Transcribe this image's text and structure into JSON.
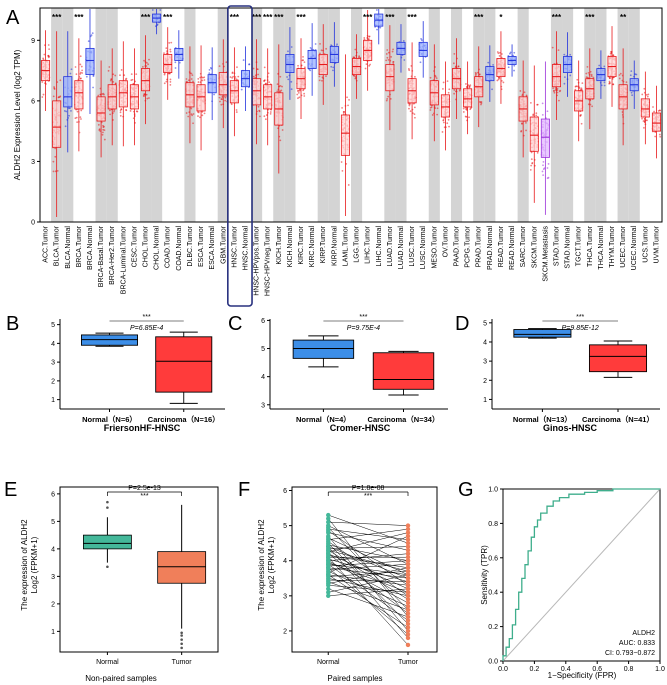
{
  "panel_letters": [
    "A",
    "B",
    "C",
    "D",
    "E",
    "F",
    "G"
  ],
  "colors": {
    "tumor": "#e8191b",
    "normal": "#2233dd",
    "metastasis": "#9b30d9",
    "shade": "#d4d4d4",
    "box_normal": "#3c8ee8",
    "box_tumor": "#ff3b3b",
    "teal": "#44b89a",
    "salmon": "#f07f5a",
    "roc": "#3fae8c",
    "highlight": "#28317f"
  },
  "chart_data": [
    {
      "id": "A",
      "type": "box",
      "ylabel": "ALDH2 Expression Level (log2 TPM)",
      "ylim": [
        0,
        10.6
      ],
      "yticks": [
        0,
        3,
        6,
        9
      ],
      "highlight_range": [
        "HNSC.Tumor",
        "HNSC.Normal"
      ],
      "categories": [
        {
          "label": "ACC.Tumor",
          "g": "t",
          "sh": 0,
          "med": 7.5,
          "q1": 7.0,
          "q3": 8.0,
          "sig": ""
        },
        {
          "label": "BLCA.Tumor",
          "g": "t",
          "sh": 1,
          "med": 4.7,
          "q1": 3.7,
          "q3": 6.0,
          "sig": "***"
        },
        {
          "label": "BLCA.Normal",
          "g": "n",
          "sh": 1,
          "med": 6.2,
          "q1": 5.7,
          "q3": 7.2,
          "sig": ""
        },
        {
          "label": "BRCA.Tumor",
          "g": "t",
          "sh": 0,
          "med": 6.4,
          "q1": 5.6,
          "q3": 7.0,
          "sig": "***"
        },
        {
          "label": "BRCA.Normal",
          "g": "n",
          "sh": 0,
          "med": 8.0,
          "q1": 7.3,
          "q3": 8.6,
          "sig": ""
        },
        {
          "label": "BRCA-Basal.Tumor",
          "g": "t",
          "sh": 1,
          "med": 5.4,
          "q1": 5.0,
          "q3": 6.2,
          "sig": ""
        },
        {
          "label": "BRCA-Her2.Tumor",
          "g": "t",
          "sh": 1,
          "med": 6.2,
          "q1": 5.6,
          "q3": 6.8,
          "sig": ""
        },
        {
          "label": "BRCA-Luminal.Tumor",
          "g": "t",
          "sh": 0,
          "med": 6.4,
          "q1": 5.7,
          "q3": 7.0,
          "sig": ""
        },
        {
          "label": "CESC.Tumor",
          "g": "t",
          "sh": 0,
          "med": 6.2,
          "q1": 5.6,
          "q3": 6.8,
          "sig": ""
        },
        {
          "label": "CHOL.Tumor",
          "g": "t",
          "sh": 1,
          "med": 7.0,
          "q1": 6.5,
          "q3": 7.6,
          "sig": "***"
        },
        {
          "label": "CHOL.Normal",
          "g": "n",
          "sh": 1,
          "med": 10.1,
          "q1": 9.9,
          "q3": 10.3,
          "sig": ""
        },
        {
          "label": "COAD.Tumor",
          "g": "t",
          "sh": 0,
          "med": 7.8,
          "q1": 7.4,
          "q3": 8.3,
          "sig": "***"
        },
        {
          "label": "COAD.Normal",
          "g": "n",
          "sh": 0,
          "med": 8.3,
          "q1": 8.0,
          "q3": 8.6,
          "sig": ""
        },
        {
          "label": "DLBC.Tumor",
          "g": "t",
          "sh": 1,
          "med": 6.3,
          "q1": 5.7,
          "q3": 6.9,
          "sig": ""
        },
        {
          "label": "ESCA.Tumor",
          "g": "t",
          "sh": 0,
          "med": 6.2,
          "q1": 5.5,
          "q3": 6.8,
          "sig": ""
        },
        {
          "label": "ESCA.Normal",
          "g": "n",
          "sh": 0,
          "med": 6.9,
          "q1": 6.4,
          "q3": 7.3,
          "sig": ""
        },
        {
          "label": "GBM.Tumor",
          "g": "t",
          "sh": 1,
          "med": 6.8,
          "q1": 6.3,
          "q3": 7.4,
          "sig": ""
        },
        {
          "label": "HNSC.Tumor",
          "g": "t",
          "sh": 0,
          "med": 6.5,
          "q1": 5.9,
          "q3": 7.0,
          "sig": "***"
        },
        {
          "label": "HNSC.Normal",
          "g": "n",
          "sh": 0,
          "med": 7.1,
          "q1": 6.7,
          "q3": 7.5,
          "sig": ""
        },
        {
          "label": "HNSC-HPVpos.Tumor",
          "g": "t",
          "sh": 1,
          "med": 6.5,
          "q1": 5.8,
          "q3": 7.1,
          "sig": "***"
        },
        {
          "label": "HNSC-HPVneg.Tumor",
          "g": "t",
          "sh": 0,
          "med": 6.2,
          "q1": 5.6,
          "q3": 6.8,
          "sig": "***"
        },
        {
          "label": "KICH.Tumor",
          "g": "t",
          "sh": 1,
          "med": 5.6,
          "q1": 4.8,
          "q3": 6.4,
          "sig": "***"
        },
        {
          "label": "KICH.Normal",
          "g": "n",
          "sh": 1,
          "med": 7.8,
          "q1": 7.4,
          "q3": 8.3,
          "sig": ""
        },
        {
          "label": "KIRC.Tumor",
          "g": "t",
          "sh": 0,
          "med": 7.1,
          "q1": 6.6,
          "q3": 7.6,
          "sig": "***"
        },
        {
          "label": "KIRC.Normal",
          "g": "n",
          "sh": 0,
          "med": 8.1,
          "q1": 7.6,
          "q3": 8.5,
          "sig": ""
        },
        {
          "label": "KIRP.Tumor",
          "g": "t",
          "sh": 1,
          "med": 7.8,
          "q1": 7.3,
          "q3": 8.3,
          "sig": ""
        },
        {
          "label": "KIRP.Normal",
          "g": "n",
          "sh": 1,
          "med": 8.3,
          "q1": 7.9,
          "q3": 8.7,
          "sig": ""
        },
        {
          "label": "LAML.Tumor",
          "g": "t",
          "sh": 0,
          "med": 4.4,
          "q1": 3.3,
          "q3": 5.3,
          "sig": ""
        },
        {
          "label": "LGG.Tumor",
          "g": "t",
          "sh": 1,
          "med": 7.7,
          "q1": 7.3,
          "q3": 8.1,
          "sig": ""
        },
        {
          "label": "LIHC.Tumor",
          "g": "t",
          "sh": 0,
          "med": 8.5,
          "q1": 8.0,
          "q3": 9.0,
          "sig": "***"
        },
        {
          "label": "LIHC.Normal",
          "g": "n",
          "sh": 0,
          "med": 10.0,
          "q1": 9.7,
          "q3": 10.3,
          "sig": ""
        },
        {
          "label": "LUAD.Tumor",
          "g": "t",
          "sh": 1,
          "med": 7.2,
          "q1": 6.5,
          "q3": 7.8,
          "sig": "***"
        },
        {
          "label": "LUAD.Normal",
          "g": "n",
          "sh": 1,
          "med": 8.6,
          "q1": 8.3,
          "q3": 8.9,
          "sig": ""
        },
        {
          "label": "LUSC.Tumor",
          "g": "t",
          "sh": 0,
          "med": 6.5,
          "q1": 5.9,
          "q3": 7.1,
          "sig": "***"
        },
        {
          "label": "LUSC.Normal",
          "g": "n",
          "sh": 0,
          "med": 8.5,
          "q1": 8.2,
          "q3": 8.9,
          "sig": ""
        },
        {
          "label": "MESO.Tumor",
          "g": "t",
          "sh": 1,
          "med": 6.4,
          "q1": 5.8,
          "q3": 7.0,
          "sig": ""
        },
        {
          "label": "OV.Tumor",
          "g": "t",
          "sh": 0,
          "med": 5.7,
          "q1": 5.2,
          "q3": 6.3,
          "sig": ""
        },
        {
          "label": "PAAD.Tumor",
          "g": "t",
          "sh": 1,
          "med": 7.1,
          "q1": 6.6,
          "q3": 7.6,
          "sig": ""
        },
        {
          "label": "PCPG.Tumor",
          "g": "t",
          "sh": 0,
          "med": 6.1,
          "q1": 5.7,
          "q3": 6.6,
          "sig": ""
        },
        {
          "label": "PRAD.Tumor",
          "g": "t",
          "sh": 1,
          "med": 6.7,
          "q1": 6.2,
          "q3": 7.2,
          "sig": "***"
        },
        {
          "label": "PRAD.Normal",
          "g": "n",
          "sh": 1,
          "med": 7.3,
          "q1": 7.0,
          "q3": 7.7,
          "sig": ""
        },
        {
          "label": "READ.Tumor",
          "g": "t",
          "sh": 0,
          "med": 7.6,
          "q1": 7.2,
          "q3": 8.1,
          "sig": "*"
        },
        {
          "label": "READ.Normal",
          "g": "n",
          "sh": 0,
          "med": 8.0,
          "q1": 7.8,
          "q3": 8.2,
          "sig": ""
        },
        {
          "label": "SARC.Tumor",
          "g": "t",
          "sh": 1,
          "med": 5.6,
          "q1": 5.0,
          "q3": 6.2,
          "sig": ""
        },
        {
          "label": "SKCM.Tumor",
          "g": "t",
          "sh": 0,
          "med": 4.3,
          "q1": 3.5,
          "q3": 5.2,
          "sig": ""
        },
        {
          "label": "SKCM.Metastasis",
          "g": "m",
          "sh": 0,
          "med": 4.2,
          "q1": 3.2,
          "q3": 5.1,
          "sig": ""
        },
        {
          "label": "STAD.Tumor",
          "g": "t",
          "sh": 1,
          "med": 7.2,
          "q1": 6.7,
          "q3": 7.8,
          "sig": "***"
        },
        {
          "label": "STAD.Normal",
          "g": "n",
          "sh": 1,
          "med": 7.8,
          "q1": 7.4,
          "q3": 8.2,
          "sig": ""
        },
        {
          "label": "TGCT.Tumor",
          "g": "t",
          "sh": 0,
          "med": 6.0,
          "q1": 5.5,
          "q3": 6.5,
          "sig": ""
        },
        {
          "label": "THCA.Tumor",
          "g": "t",
          "sh": 1,
          "med": 6.6,
          "q1": 6.1,
          "q3": 7.1,
          "sig": "***"
        },
        {
          "label": "THCA.Normal",
          "g": "n",
          "sh": 1,
          "med": 7.3,
          "q1": 7.0,
          "q3": 7.6,
          "sig": ""
        },
        {
          "label": "THYM.Tumor",
          "g": "t",
          "sh": 0,
          "med": 7.7,
          "q1": 7.2,
          "q3": 8.2,
          "sig": ""
        },
        {
          "label": "UCEC.Tumor",
          "g": "t",
          "sh": 1,
          "med": 6.2,
          "q1": 5.6,
          "q3": 6.8,
          "sig": "**"
        },
        {
          "label": "UCEC.Normal",
          "g": "n",
          "sh": 1,
          "med": 6.8,
          "q1": 6.5,
          "q3": 7.1,
          "sig": ""
        },
        {
          "label": "UCS.Tumor",
          "g": "t",
          "sh": 0,
          "med": 5.6,
          "q1": 5.2,
          "q3": 6.1,
          "sig": ""
        },
        {
          "label": "UVM.Tumor",
          "g": "t",
          "sh": 0,
          "med": 4.9,
          "q1": 4.5,
          "q3": 5.4,
          "sig": ""
        }
      ]
    },
    {
      "id": "B",
      "type": "box",
      "title": "FriersonHF-HNSC",
      "ylim": [
        0.5,
        5.3
      ],
      "yticks": [
        1,
        2,
        3,
        4,
        5
      ],
      "sig": "***",
      "pvalue": "P=6.85E-4",
      "groups": [
        {
          "label": "Normal（N=6）",
          "min": 3.85,
          "q1": 3.9,
          "med": 4.2,
          "q3": 4.45,
          "max": 4.55
        },
        {
          "label": "Carcinoma（N=16）",
          "min": 0.8,
          "q1": 1.4,
          "med": 3.05,
          "q3": 4.35,
          "max": 4.6
        }
      ]
    },
    {
      "id": "C",
      "type": "box",
      "title": "Cromer-HNSC",
      "ylim": [
        2.85,
        6.05
      ],
      "yticks": [
        3,
        4,
        5,
        6
      ],
      "sig": "***",
      "pvalue": "P=9.75E-4",
      "groups": [
        {
          "label": "Normal（N=4）",
          "min": 4.35,
          "q1": 4.65,
          "med": 5.0,
          "q3": 5.3,
          "max": 5.45
        },
        {
          "label": "Carcinoma（N=34）",
          "min": 3.35,
          "q1": 3.55,
          "med": 3.9,
          "q3": 4.85,
          "max": 4.9
        }
      ]
    },
    {
      "id": "D",
      "type": "box",
      "title": "Ginos-HNSC",
      "ylim": [
        0.5,
        5.2
      ],
      "yticks": [
        1,
        2,
        3,
        4,
        5
      ],
      "sig": "***",
      "pvalue": "P=9.85E-12",
      "groups": [
        {
          "label": "Normal（N=13）",
          "min": 4.2,
          "q1": 4.25,
          "med": 4.4,
          "q3": 4.65,
          "max": 4.7
        },
        {
          "label": "Carcinoma（N=41）",
          "min": 2.15,
          "q1": 2.45,
          "med": 3.25,
          "q3": 3.85,
          "max": 4.05
        }
      ]
    },
    {
      "id": "E",
      "type": "box",
      "xlabel": "Non-paired samples",
      "ylabel_line1": "The expression of ALDH2",
      "ylabel_line2": "Log2 (FPKM+1)",
      "ylim": [
        0.25,
        6.25
      ],
      "yticks": [
        1,
        2,
        3,
        4,
        5,
        6
      ],
      "pvalue": "P=2.5e-13",
      "sig": "***",
      "groups": [
        {
          "label": "Normal",
          "min": 3.5,
          "q1": 4.0,
          "med": 4.2,
          "q3": 4.5,
          "max": 5.15,
          "outliers": [
            5.7,
            5.5,
            3.35
          ]
        },
        {
          "label": "Tumor",
          "min": 1.1,
          "q1": 2.75,
          "med": 3.35,
          "q3": 3.9,
          "max": 5.6,
          "outliers": [
            0.95,
            0.85,
            0.7,
            0.55,
            0.4
          ]
        }
      ]
    },
    {
      "id": "F",
      "type": "paired",
      "xlabel": "Paired samples",
      "ylabel_line1": "The expression of ALDH2",
      "ylabel_line2": "Log2 (FPKM+1)",
      "ylim": [
        1.4,
        6.1
      ],
      "yticks": [
        2,
        3,
        4,
        5,
        6
      ],
      "pvalue": "P=1.8e-08",
      "sig": "***",
      "categories": [
        "Normal",
        "Tumor"
      ],
      "normal": [
        5.3,
        5.2,
        5.1,
        5.0,
        4.95,
        4.9,
        4.85,
        4.8,
        4.7,
        4.65,
        4.6,
        4.55,
        4.5,
        4.45,
        4.4,
        4.4,
        4.35,
        4.3,
        4.3,
        4.25,
        4.2,
        4.2,
        4.15,
        4.1,
        4.1,
        4.05,
        4.0,
        4.0,
        3.95,
        3.9,
        3.9,
        3.85,
        3.8,
        3.8,
        3.75,
        3.7,
        3.65,
        3.6,
        3.6,
        3.55,
        3.5,
        3.45,
        3.4,
        3.35,
        3.3,
        3.2,
        3.1,
        3.0
      ],
      "tumor": [
        4.5,
        2.4,
        5.0,
        3.9,
        2.6,
        4.6,
        3.3,
        4.3,
        2.0,
        3.6,
        4.9,
        3.0,
        2.2,
        4.0,
        3.5,
        1.8,
        4.4,
        2.9,
        3.7,
        4.8,
        3.2,
        2.5,
        3.8,
        1.6,
        4.1,
        3.4,
        2.8,
        4.2,
        3.1,
        3.6,
        2.3,
        4.0,
        3.5,
        1.9,
        3.9,
        2.7,
        4.7,
        3.3,
        2.1,
        3.7,
        3.0,
        3.4,
        2.6,
        3.8,
        3.1,
        2.4,
        3.6,
        3.2
      ]
    },
    {
      "id": "G",
      "type": "line",
      "xlabel": "1−Specificity (FPR)",
      "ylabel": "Sensitivity (TPR)",
      "xlim": [
        0,
        1
      ],
      "ylim": [
        0,
        1
      ],
      "xticks": [
        "0.0",
        "0.2",
        "0.4",
        "0.6",
        "0.8",
        "1.0"
      ],
      "yticks": [
        "0.0",
        "0.2",
        "0.4",
        "0.6",
        "0.8",
        "1.0"
      ],
      "legend": {
        "gene": "ALDH2",
        "auc": "AUC: 0.833",
        "ci": "CI: 0.793−0.872"
      },
      "roc_x": [
        0,
        0,
        0.02,
        0.02,
        0.04,
        0.04,
        0.06,
        0.06,
        0.08,
        0.08,
        0.1,
        0.1,
        0.12,
        0.12,
        0.14,
        0.14,
        0.16,
        0.16,
        0.18,
        0.18,
        0.2,
        0.2,
        0.22,
        0.22,
        0.24,
        0.24,
        0.28,
        0.28,
        0.32,
        0.32,
        0.36,
        0.36,
        0.42,
        0.42,
        0.52,
        0.52,
        0.6,
        0.6,
        0.7,
        0.7,
        1.0
      ],
      "roc_y": [
        0,
        0.03,
        0.03,
        0.08,
        0.08,
        0.13,
        0.13,
        0.21,
        0.21,
        0.3,
        0.3,
        0.4,
        0.4,
        0.48,
        0.48,
        0.56,
        0.56,
        0.64,
        0.64,
        0.72,
        0.72,
        0.78,
        0.78,
        0.82,
        0.82,
        0.86,
        0.86,
        0.9,
        0.9,
        0.93,
        0.93,
        0.95,
        0.95,
        0.97,
        0.97,
        0.98,
        0.98,
        0.99,
        0.99,
        1.0,
        1.0
      ]
    }
  ]
}
